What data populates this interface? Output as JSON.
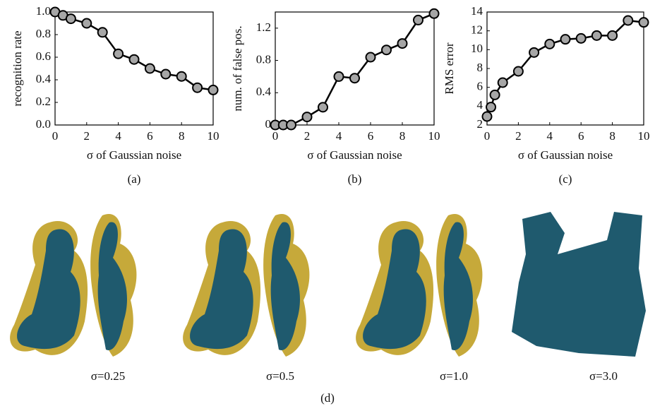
{
  "chart_data": [
    {
      "type": "line",
      "caption": "(a)",
      "x_label": "σ of Gaussian noise",
      "y_label": "recognition rate",
      "x": [
        0,
        0.5,
        1,
        2,
        3,
        4,
        5,
        6,
        7,
        8,
        9,
        10
      ],
      "series": [
        {
          "color": "#a6a6a6",
          "values": [
            1.0,
            0.97,
            0.94,
            0.9,
            0.82,
            0.63,
            0.58,
            0.5,
            0.45,
            0.43,
            0.33,
            0.31
          ]
        }
      ],
      "xlim": [
        0,
        10
      ],
      "xticks": [
        0,
        2,
        4,
        6,
        8,
        10
      ],
      "ylim": [
        0,
        1
      ],
      "yticks": [
        {
          "value": 0,
          "label": "0.0"
        },
        0.2,
        0.4,
        0.6,
        0.8,
        {
          "value": 1,
          "label": "1.0"
        }
      ]
    },
    {
      "type": "line",
      "caption": "(b)",
      "x_label": "σ of Gaussian noise",
      "y_label": "num. of false pos.",
      "x": [
        0,
        0.5,
        1,
        2,
        3,
        4,
        5,
        6,
        7,
        8,
        9,
        10
      ],
      "series": [
        {
          "color": "#a6a6a6",
          "values": [
            0,
            0,
            0,
            0.1,
            0.22,
            0.6,
            0.58,
            0.84,
            0.93,
            1.01,
            1.3,
            1.38
          ]
        }
      ],
      "xlim": [
        0,
        10
      ],
      "xticks": [
        0,
        2,
        4,
        6,
        8,
        10
      ],
      "ylim": [
        0,
        1.4
      ],
      "yticks": [
        0,
        0.4,
        0.8,
        1.2
      ]
    },
    {
      "type": "line",
      "caption": "(c)",
      "x_label": "σ of Gaussian noise",
      "y_label": "RMS error",
      "x": [
        0,
        0.25,
        0.5,
        1,
        2,
        3,
        4,
        5,
        6,
        7,
        8,
        9,
        10
      ],
      "series": [
        {
          "color": "#a6a6a6",
          "values": [
            2.9,
            3.9,
            5.2,
            6.5,
            7.7,
            9.7,
            10.6,
            11.1,
            11.2,
            11.5,
            11.5,
            13.1,
            12.9
          ]
        }
      ],
      "xlim": [
        0,
        10
      ],
      "xticks": [
        0,
        2,
        4,
        6,
        8,
        10
      ],
      "ylim": [
        2,
        14
      ],
      "yticks": [
        2,
        4,
        6,
        8,
        10,
        12,
        14
      ]
    }
  ],
  "renderings": {
    "captions": [
      "σ=0.25",
      "σ=0.5",
      "σ=1.0",
      "σ=3.0"
    ],
    "label": "(d)"
  }
}
